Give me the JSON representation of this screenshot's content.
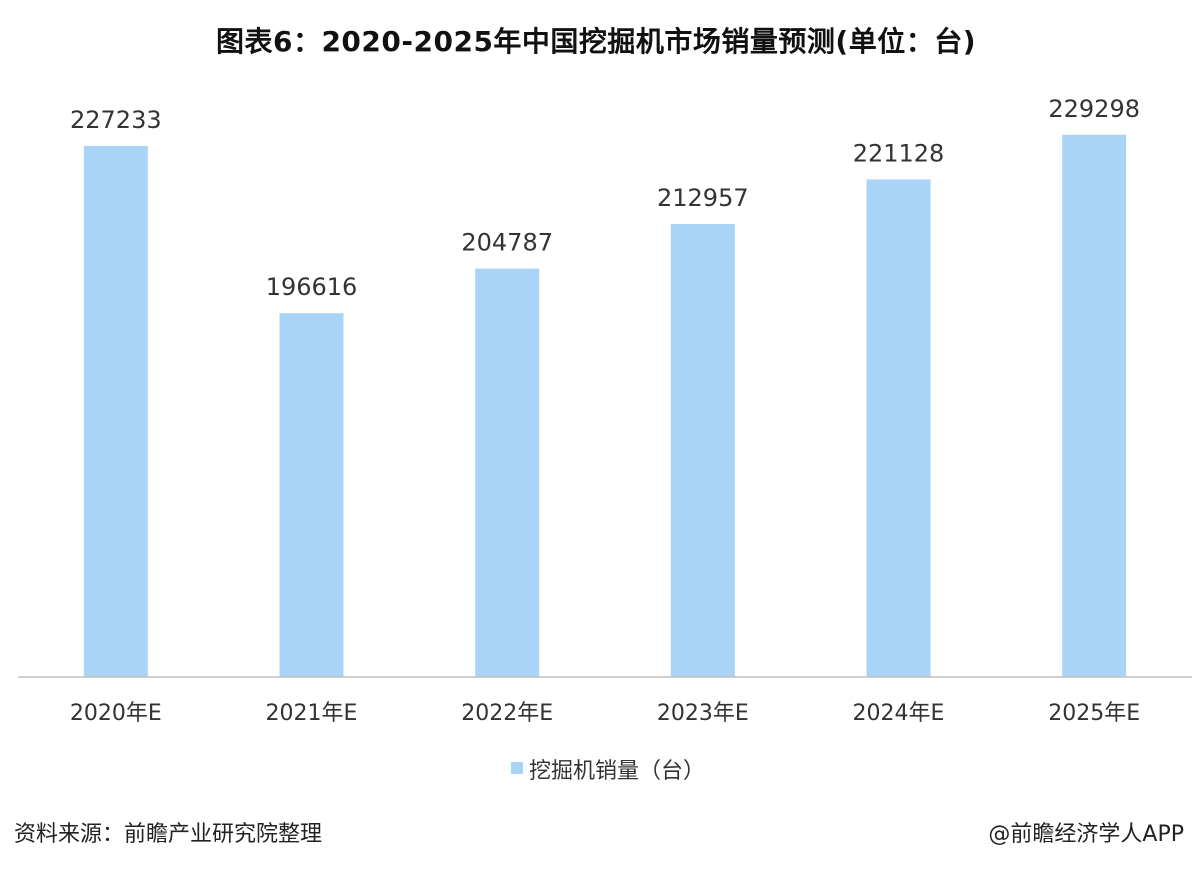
{
  "title": "图表6：2020-2025年中国挖掘机市场销量预测(单位：台)",
  "chart_data": {
    "type": "bar",
    "categories": [
      "2020年E",
      "2021年E",
      "2022年E",
      "2023年E",
      "2024年E",
      "2025年E"
    ],
    "series": [
      {
        "name": "挖掘机销量（台）",
        "values": [
          227233,
          196616,
          204787,
          212957,
          221128,
          229298
        ]
      }
    ],
    "data_labels": [
      "227233",
      "196616",
      "204787",
      "212957",
      "221128",
      "229298"
    ],
    "bar_color": "#a9d4f7",
    "axis_color": "#bfbfbf",
    "ylim": [
      130000,
      232000
    ],
    "grid": false,
    "legend_position": "bottom"
  },
  "source": "资料来源：前瞻产业研究院整理",
  "credit": "@前瞻经济学人APP"
}
